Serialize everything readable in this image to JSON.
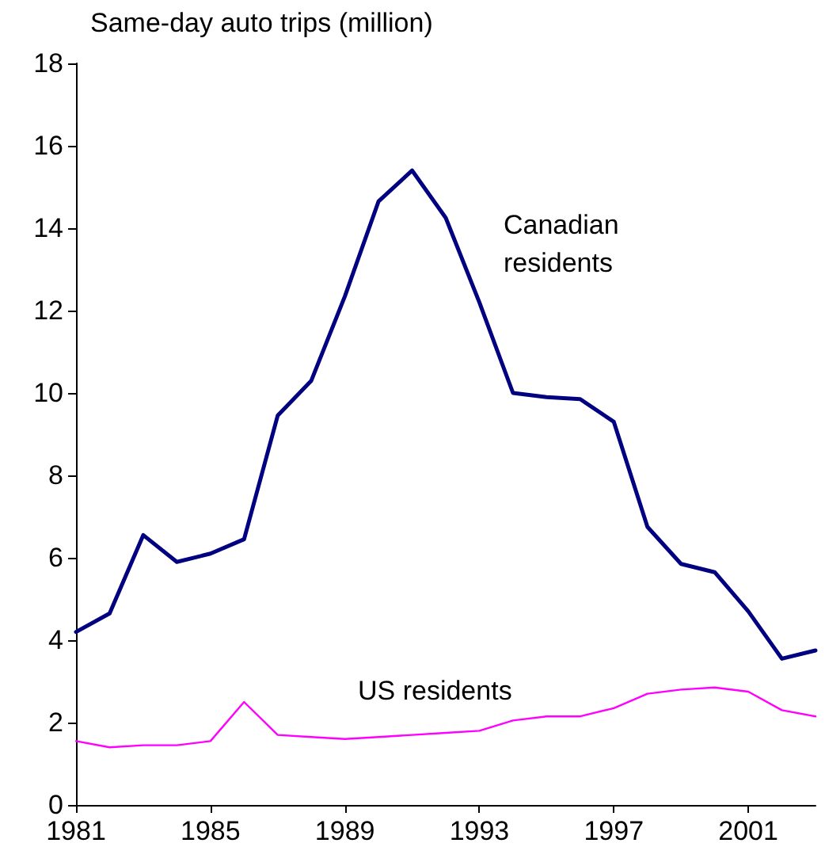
{
  "chart_data": {
    "type": "line",
    "ylabel": "Same-day auto trips (million)",
    "x": [
      1981,
      1982,
      1983,
      1984,
      1985,
      1986,
      1987,
      1988,
      1989,
      1990,
      1991,
      1992,
      1993,
      1994,
      1995,
      1996,
      1997,
      1998,
      1999,
      2000,
      2001,
      2002,
      2003
    ],
    "series": [
      {
        "name": "Canadian\nresidents",
        "color": "#000080",
        "values": [
          4.2,
          4.65,
          6.55,
          5.9,
          6.1,
          6.45,
          9.45,
          10.3,
          12.35,
          14.65,
          15.4,
          14.25,
          12.2,
          10.0,
          9.9,
          9.85,
          9.3,
          6.75,
          5.85,
          5.65,
          4.7,
          3.55,
          3.75
        ]
      },
      {
        "name": "US residents",
        "color": "#ff00ff",
        "values": [
          1.55,
          1.4,
          1.45,
          1.45,
          1.55,
          2.5,
          1.7,
          1.65,
          1.6,
          1.65,
          1.7,
          1.75,
          1.8,
          2.05,
          2.15,
          2.15,
          2.35,
          2.7,
          2.8,
          2.85,
          2.75,
          2.3,
          2.15
        ]
      }
    ],
    "xlim": [
      1981,
      2003
    ],
    "xticks": [
      1981,
      1985,
      1989,
      1993,
      1997,
      2001
    ],
    "ylim": [
      0,
      18
    ],
    "yticks": [
      0,
      2,
      4,
      6,
      8,
      10,
      12,
      14,
      16,
      18
    ],
    "grid": false,
    "legend": false,
    "marker": "none",
    "line_style": "solid"
  }
}
